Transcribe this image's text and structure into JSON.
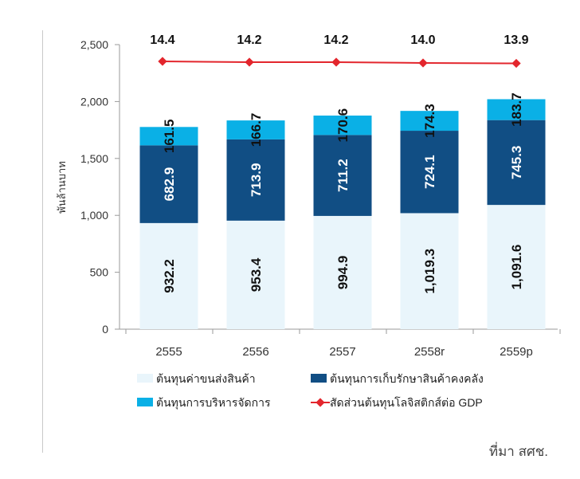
{
  "chart_data": {
    "type": "bar",
    "stacked": true,
    "categories": [
      "2555",
      "2556",
      "2557",
      "2558r",
      "2559p"
    ],
    "series": [
      {
        "name": "ต้นทุนค่าขนส่งสินค้า",
        "values": [
          932.2,
          953.4,
          994.9,
          1019.3,
          1091.6
        ],
        "labels": [
          "932.2",
          "953.4",
          "994.9",
          "1,019.3",
          "1,091.6"
        ],
        "color": "#e9f5fb"
      },
      {
        "name": "ต้นทุนการเก็บรักษาสินค้าคงคลัง",
        "values": [
          682.9,
          713.9,
          711.2,
          724.1,
          745.3
        ],
        "labels": [
          "682.9",
          "713.9",
          "711.2",
          "724.1",
          "745.3"
        ],
        "color": "#114e84"
      },
      {
        "name": "ต้นทุนการบริหารจัดการ",
        "values": [
          161.5,
          166.7,
          170.6,
          174.3,
          183.7
        ],
        "labels": [
          "161.5",
          "166.7",
          "170.6",
          "174.3",
          "183.7"
        ],
        "color": "#0ab0e6"
      }
    ],
    "line_series": {
      "name": "สัดส่วนต้นทุนโลจิสติกส์ต่อ GDP",
      "values": [
        14.4,
        14.2,
        14.2,
        14.0,
        13.9
      ],
      "labels": [
        "14.4",
        "14.2",
        "14.2",
        "14.0",
        "13.9"
      ],
      "color": "#e3262d"
    },
    "ylabel": "พันล้านบาท",
    "ylim": [
      0,
      2500
    ],
    "yticks": [
      "0",
      "500",
      "1,000",
      "1,500",
      "2,000",
      "2,500"
    ],
    "legend": "bottom",
    "grid": false
  },
  "source_note": "ที่มา สศช."
}
